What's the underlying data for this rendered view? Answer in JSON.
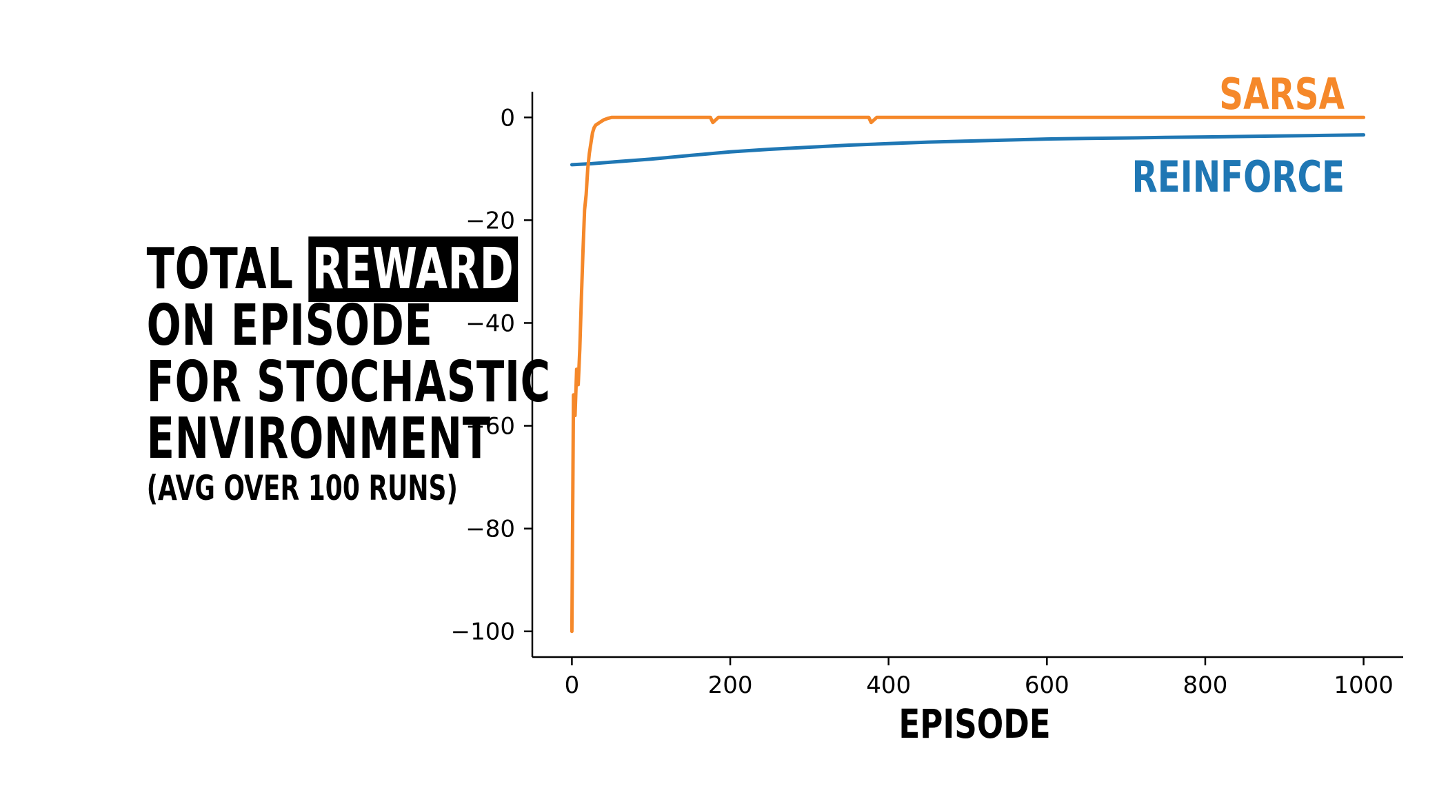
{
  "chart_data": {
    "type": "line",
    "ylabel": {
      "line1_before": "TOTAL",
      "line1_highlight": "REWARD",
      "line2": "ON EPISODE",
      "line3": "FOR STOCHASTIC",
      "line4": "ENVIRONMENT",
      "subtitle": "(AVG OVER 100 RUNS)"
    },
    "xlabel": "EPISODE",
    "xlim": [
      -50,
      1050
    ],
    "ylim": [
      -105,
      5
    ],
    "xticks": [
      0,
      200,
      400,
      600,
      800,
      1000
    ],
    "yticks": [
      0,
      -20,
      -40,
      -60,
      -80,
      -100
    ],
    "xtick_labels": [
      "0",
      "200",
      "400",
      "600",
      "800",
      "1000"
    ],
    "ytick_labels": [
      "0",
      "−20",
      "−40",
      "−60",
      "−80",
      "−100"
    ],
    "grid": false,
    "legend": "inline labels at right end of lines",
    "series": [
      {
        "name": "SARSA",
        "color": "#f5882a",
        "x": [
          0,
          2,
          4,
          6,
          8,
          10,
          12,
          14,
          16,
          18,
          20,
          22,
          24,
          26,
          28,
          30,
          35,
          40,
          45,
          50,
          60,
          80,
          100,
          150,
          175,
          178,
          185,
          200,
          250,
          300,
          350,
          375,
          378,
          385,
          400,
          500,
          600,
          700,
          800,
          900,
          1000
        ],
        "y": [
          -100,
          -54,
          -58,
          -49,
          -52,
          -45,
          -35,
          -26,
          -18,
          -15,
          -10,
          -7,
          -5,
          -3,
          -2,
          -1.5,
          -1,
          -0.5,
          -0.2,
          0,
          0,
          0,
          0,
          0,
          0,
          -1,
          0,
          0,
          0,
          0,
          0,
          0,
          -1,
          0,
          0,
          0,
          0,
          0,
          0,
          0,
          0
        ]
      },
      {
        "name": "REINFORCE",
        "color": "#1f77b4",
        "x": [
          0,
          25,
          50,
          100,
          150,
          200,
          250,
          300,
          350,
          400,
          450,
          500,
          550,
          600,
          650,
          700,
          750,
          800,
          850,
          900,
          950,
          1000
        ],
        "y": [
          -9.2,
          -9,
          -8.7,
          -8.1,
          -7.4,
          -6.7,
          -6.2,
          -5.8,
          -5.4,
          -5.1,
          -4.8,
          -4.6,
          -4.4,
          -4.2,
          -4.1,
          -4.0,
          -3.9,
          -3.8,
          -3.7,
          -3.6,
          -3.5,
          -3.4
        ]
      }
    ]
  }
}
